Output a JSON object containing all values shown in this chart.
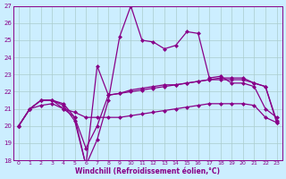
{
  "xlabel": "Windchill (Refroidissement éolien,°C)",
  "background_color": "#cceeff",
  "line_color": "#880088",
  "grid_color": "#aacccc",
  "xlim": [
    -0.5,
    23.5
  ],
  "ylim": [
    18,
    27
  ],
  "yticks": [
    18,
    19,
    20,
    21,
    22,
    23,
    24,
    25,
    26,
    27
  ],
  "xticks": [
    0,
    1,
    2,
    3,
    4,
    5,
    6,
    7,
    8,
    9,
    10,
    11,
    12,
    13,
    14,
    15,
    16,
    17,
    18,
    19,
    20,
    21,
    22,
    23
  ],
  "series_volatile_x": [
    0,
    1,
    2,
    3,
    4,
    5,
    6,
    7,
    8,
    9,
    10,
    11,
    12,
    13,
    14,
    15,
    16,
    17,
    18,
    19,
    20,
    21,
    22,
    23
  ],
  "series_volatile_y": [
    20.0,
    21.0,
    21.5,
    21.5,
    21.2,
    20.3,
    17.7,
    19.2,
    21.5,
    25.2,
    27.0,
    25.0,
    24.9,
    24.5,
    24.7,
    25.5,
    25.4,
    22.8,
    22.9,
    22.5,
    22.5,
    22.3,
    21.0,
    20.5
  ],
  "series_spike_x": [
    0,
    1,
    2,
    3,
    4,
    5,
    6,
    7,
    8,
    9,
    10,
    11,
    12,
    13,
    14,
    15,
    16,
    17,
    18,
    19,
    20,
    21,
    22,
    23
  ],
  "series_spike_y": [
    20.0,
    21.0,
    21.5,
    21.5,
    21.0,
    20.5,
    17.7,
    23.5,
    21.8,
    21.9,
    22.0,
    22.1,
    22.2,
    22.3,
    22.4,
    22.5,
    22.6,
    22.7,
    22.7,
    22.7,
    22.7,
    22.5,
    22.3,
    20.2
  ],
  "series_upper_x": [
    0,
    1,
    2,
    3,
    4,
    5,
    6,
    7,
    8,
    9,
    10,
    11,
    12,
    13,
    14,
    15,
    16,
    17,
    18,
    19,
    20,
    21,
    22,
    23
  ],
  "series_upper_y": [
    20.0,
    21.0,
    21.5,
    21.5,
    21.3,
    20.5,
    18.7,
    20.0,
    21.8,
    21.9,
    22.1,
    22.2,
    22.3,
    22.4,
    22.4,
    22.5,
    22.6,
    22.7,
    22.8,
    22.8,
    22.8,
    22.5,
    22.3,
    20.3
  ],
  "series_lower_x": [
    0,
    1,
    2,
    3,
    4,
    5,
    6,
    7,
    8,
    9,
    10,
    11,
    12,
    13,
    14,
    15,
    16,
    17,
    18,
    19,
    20,
    21,
    22,
    23
  ],
  "series_lower_y": [
    20.0,
    21.0,
    21.2,
    21.3,
    21.0,
    20.8,
    20.5,
    20.5,
    20.5,
    20.5,
    20.6,
    20.7,
    20.8,
    20.9,
    21.0,
    21.1,
    21.2,
    21.3,
    21.3,
    21.3,
    21.3,
    21.2,
    20.5,
    20.2
  ],
  "marker": "D",
  "markersize": 2.5,
  "linewidth": 0.9
}
